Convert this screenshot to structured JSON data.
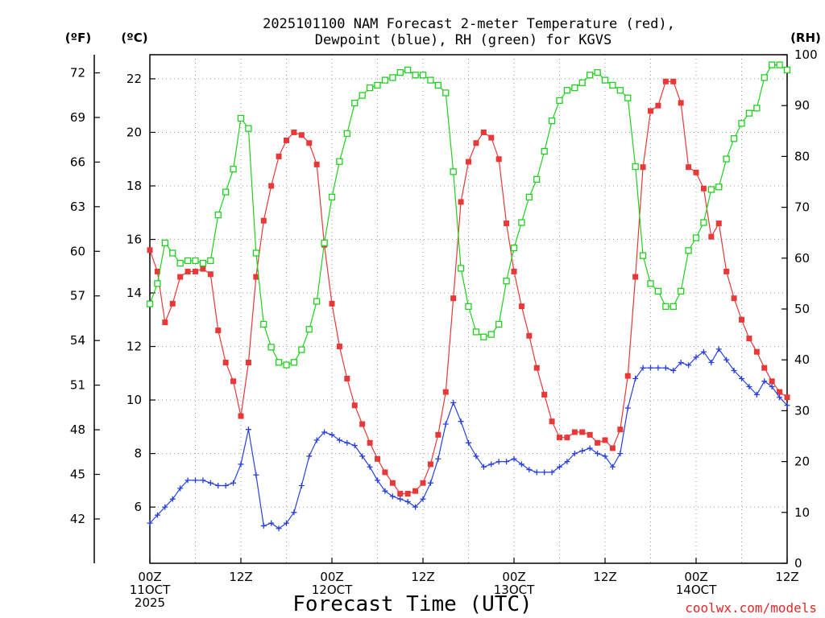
{
  "chart_data": {
    "type": "line",
    "title_line1": "2025101100 NAM Forecast 2-meter Temperature (red),",
    "title_line2": "Dewpoint (blue), RH (green) for KGVS",
    "xlabel": "Forecast Time (UTC)",
    "credit": "coolwx.com/models",
    "units": {
      "fahrenheit": "(ºF)",
      "celsius": "(ºC)",
      "rh": "(RH)"
    },
    "xlim": [
      0,
      84
    ],
    "x_unit": "forecast hour",
    "y_celsius_lim": [
      3.9,
      22.9
    ],
    "y_rh_lim": [
      0,
      100
    ],
    "x_ticks": [
      {
        "x": 0,
        "line1": "00Z",
        "line2": "11OCT",
        "line3": "2025"
      },
      {
        "x": 12,
        "line1": "12Z",
        "line2": "",
        "line3": ""
      },
      {
        "x": 24,
        "line1": "00Z",
        "line2": "12OCT",
        "line3": ""
      },
      {
        "x": 36,
        "line1": "12Z",
        "line2": "",
        "line3": ""
      },
      {
        "x": 48,
        "line1": "00Z",
        "line2": "13OCT",
        "line3": ""
      },
      {
        "x": 60,
        "line1": "12Z",
        "line2": "",
        "line3": ""
      },
      {
        "x": 72,
        "line1": "00Z",
        "line2": "14OCT",
        "line3": ""
      },
      {
        "x": 84,
        "line1": "12Z",
        "line2": "",
        "line3": ""
      }
    ],
    "celsius_ticks": [
      "6",
      "8",
      "10",
      "12",
      "14",
      "16",
      "18",
      "20",
      "22"
    ],
    "fahrenheit_ticks": [
      "42",
      "45",
      "48",
      "51",
      "54",
      "57",
      "60",
      "63",
      "66",
      "69",
      "72"
    ],
    "rh_ticks": [
      "0",
      "10",
      "20",
      "30",
      "40",
      "50",
      "60",
      "70",
      "80",
      "90",
      "100"
    ],
    "grid": true,
    "series": [
      {
        "name": "Temperature (red)",
        "axis": "celsius",
        "color": "#e83838",
        "marker": "filled-square",
        "values": [
          [
            0,
            15.6
          ],
          [
            1,
            14.8
          ],
          [
            2,
            12.9
          ],
          [
            3,
            13.6
          ],
          [
            4,
            14.6
          ],
          [
            5,
            14.8
          ],
          [
            6,
            14.8
          ],
          [
            7,
            14.9
          ],
          [
            8,
            14.7
          ],
          [
            9,
            12.6
          ],
          [
            10,
            11.4
          ],
          [
            11,
            10.7
          ],
          [
            12,
            9.4
          ],
          [
            13,
            11.4
          ],
          [
            14,
            14.6
          ],
          [
            15,
            16.7
          ],
          [
            16,
            18.0
          ],
          [
            17,
            19.1
          ],
          [
            18,
            19.7
          ],
          [
            19,
            20.0
          ],
          [
            20,
            19.9
          ],
          [
            21,
            19.6
          ],
          [
            22,
            18.8
          ],
          [
            23,
            15.8
          ],
          [
            24,
            13.6
          ],
          [
            25,
            12.0
          ],
          [
            26,
            10.8
          ],
          [
            27,
            9.8
          ],
          [
            28,
            9.1
          ],
          [
            29,
            8.4
          ],
          [
            30,
            7.8
          ],
          [
            31,
            7.3
          ],
          [
            32,
            6.9
          ],
          [
            33,
            6.5
          ],
          [
            34,
            6.5
          ],
          [
            35,
            6.6
          ],
          [
            36,
            6.9
          ],
          [
            37,
            7.6
          ],
          [
            38,
            8.7
          ],
          [
            39,
            10.3
          ],
          [
            40,
            13.8
          ],
          [
            41,
            17.4
          ],
          [
            42,
            18.9
          ],
          [
            43,
            19.6
          ],
          [
            44,
            20.0
          ],
          [
            45,
            19.8
          ],
          [
            46,
            19.0
          ],
          [
            47,
            16.6
          ],
          [
            48,
            14.8
          ],
          [
            49,
            13.5
          ],
          [
            50,
            12.4
          ],
          [
            51,
            11.2
          ],
          [
            52,
            10.2
          ],
          [
            53,
            9.2
          ],
          [
            54,
            8.6
          ],
          [
            55,
            8.6
          ],
          [
            56,
            8.8
          ],
          [
            57,
            8.8
          ],
          [
            58,
            8.7
          ],
          [
            59,
            8.4
          ],
          [
            60,
            8.5
          ],
          [
            61,
            8.2
          ],
          [
            62,
            8.9
          ],
          [
            63,
            10.9
          ],
          [
            64,
            14.6
          ],
          [
            65,
            18.7
          ],
          [
            66,
            20.8
          ],
          [
            67,
            21.0
          ],
          [
            68,
            21.9
          ],
          [
            69,
            21.9
          ],
          [
            70,
            21.1
          ],
          [
            71,
            18.7
          ],
          [
            72,
            18.5
          ],
          [
            73,
            17.9
          ],
          [
            74,
            16.1
          ],
          [
            75,
            16.6
          ],
          [
            76,
            14.8
          ],
          [
            77,
            13.8
          ],
          [
            78,
            13.0
          ],
          [
            79,
            12.3
          ],
          [
            80,
            11.8
          ],
          [
            81,
            11.2
          ],
          [
            82,
            10.7
          ],
          [
            83,
            10.3
          ],
          [
            84,
            10.1
          ]
        ]
      },
      {
        "name": "Dewpoint (blue)",
        "axis": "celsius",
        "color": "#2840e0",
        "marker": "plus",
        "values": [
          [
            0,
            5.4
          ],
          [
            1,
            5.7
          ],
          [
            2,
            6.0
          ],
          [
            3,
            6.3
          ],
          [
            4,
            6.7
          ],
          [
            5,
            7.0
          ],
          [
            6,
            7.0
          ],
          [
            7,
            7.0
          ],
          [
            8,
            6.9
          ],
          [
            9,
            6.8
          ],
          [
            10,
            6.8
          ],
          [
            11,
            6.9
          ],
          [
            12,
            7.6
          ],
          [
            13,
            8.9
          ],
          [
            14,
            7.2
          ],
          [
            15,
            5.3
          ],
          [
            16,
            5.4
          ],
          [
            17,
            5.2
          ],
          [
            18,
            5.4
          ],
          [
            19,
            5.8
          ],
          [
            20,
            6.8
          ],
          [
            21,
            7.9
          ],
          [
            22,
            8.5
          ],
          [
            23,
            8.8
          ],
          [
            24,
            8.7
          ],
          [
            25,
            8.5
          ],
          [
            26,
            8.4
          ],
          [
            27,
            8.3
          ],
          [
            28,
            7.9
          ],
          [
            29,
            7.5
          ],
          [
            30,
            7.0
          ],
          [
            31,
            6.6
          ],
          [
            32,
            6.4
          ],
          [
            33,
            6.3
          ],
          [
            34,
            6.2
          ],
          [
            35,
            6.0
          ],
          [
            36,
            6.3
          ],
          [
            37,
            6.9
          ],
          [
            38,
            7.8
          ],
          [
            39,
            9.1
          ],
          [
            40,
            9.9
          ],
          [
            41,
            9.2
          ],
          [
            42,
            8.4
          ],
          [
            43,
            7.9
          ],
          [
            44,
            7.5
          ],
          [
            45,
            7.6
          ],
          [
            46,
            7.7
          ],
          [
            47,
            7.7
          ],
          [
            48,
            7.8
          ],
          [
            49,
            7.6
          ],
          [
            50,
            7.4
          ],
          [
            51,
            7.3
          ],
          [
            52,
            7.3
          ],
          [
            53,
            7.3
          ],
          [
            54,
            7.5
          ],
          [
            55,
            7.7
          ],
          [
            56,
            8.0
          ],
          [
            57,
            8.1
          ],
          [
            58,
            8.2
          ],
          [
            59,
            8.0
          ],
          [
            60,
            7.9
          ],
          [
            61,
            7.5
          ],
          [
            62,
            8.0
          ],
          [
            63,
            9.7
          ],
          [
            64,
            10.8
          ],
          [
            65,
            11.2
          ],
          [
            66,
            11.2
          ],
          [
            67,
            11.2
          ],
          [
            68,
            11.2
          ],
          [
            69,
            11.1
          ],
          [
            70,
            11.4
          ],
          [
            71,
            11.3
          ],
          [
            72,
            11.6
          ],
          [
            73,
            11.8
          ],
          [
            74,
            11.4
          ],
          [
            75,
            11.9
          ],
          [
            76,
            11.5
          ],
          [
            77,
            11.1
          ],
          [
            78,
            10.8
          ],
          [
            79,
            10.5
          ],
          [
            80,
            10.2
          ],
          [
            81,
            10.7
          ],
          [
            82,
            10.5
          ],
          [
            83,
            10.1
          ],
          [
            84,
            9.8
          ]
        ]
      },
      {
        "name": "RH (green)",
        "axis": "rh",
        "color": "#20d020",
        "marker": "open-square",
        "values": [
          [
            0,
            51
          ],
          [
            1,
            55
          ],
          [
            2,
            63
          ],
          [
            3,
            61
          ],
          [
            4,
            59
          ],
          [
            5,
            59.5
          ],
          [
            6,
            59.5
          ],
          [
            7,
            59
          ],
          [
            8,
            59.5
          ],
          [
            9,
            68.5
          ],
          [
            10,
            73
          ],
          [
            11,
            77.5
          ],
          [
            12,
            87.5
          ],
          [
            13,
            85.5
          ],
          [
            14,
            61
          ],
          [
            15,
            47
          ],
          [
            16,
            42.5
          ],
          [
            17,
            39.5
          ],
          [
            18,
            39
          ],
          [
            19,
            39.5
          ],
          [
            20,
            42
          ],
          [
            21,
            46
          ],
          [
            22,
            51.5
          ],
          [
            23,
            63
          ],
          [
            24,
            72
          ],
          [
            25,
            79
          ],
          [
            26,
            84.5
          ],
          [
            27,
            90.5
          ],
          [
            28,
            92
          ],
          [
            29,
            93.5
          ],
          [
            30,
            94
          ],
          [
            31,
            95
          ],
          [
            32,
            95.5
          ],
          [
            33,
            96.5
          ],
          [
            34,
            97
          ],
          [
            35,
            96
          ],
          [
            36,
            96
          ],
          [
            37,
            95
          ],
          [
            38,
            94
          ],
          [
            39,
            92.5
          ],
          [
            40,
            77
          ],
          [
            41,
            58
          ],
          [
            42,
            50.5
          ],
          [
            43,
            45.5
          ],
          [
            44,
            44.5
          ],
          [
            45,
            45
          ],
          [
            46,
            47
          ],
          [
            47,
            55.5
          ],
          [
            48,
            62
          ],
          [
            49,
            67
          ],
          [
            50,
            72
          ],
          [
            51,
            75.5
          ],
          [
            52,
            81
          ],
          [
            53,
            87
          ],
          [
            54,
            91
          ],
          [
            55,
            93
          ],
          [
            56,
            93.5
          ],
          [
            57,
            94.5
          ],
          [
            58,
            96
          ],
          [
            59,
            96.5
          ],
          [
            60,
            95
          ],
          [
            61,
            94
          ],
          [
            62,
            93
          ],
          [
            63,
            91.5
          ],
          [
            64,
            78
          ],
          [
            65,
            60.5
          ],
          [
            66,
            55
          ],
          [
            67,
            53.5
          ],
          [
            68,
            50.5
          ],
          [
            69,
            50.5
          ],
          [
            70,
            53.5
          ],
          [
            71,
            61.5
          ],
          [
            72,
            64
          ],
          [
            73,
            67
          ],
          [
            74,
            73.5
          ],
          [
            75,
            74
          ],
          [
            76,
            79.5
          ],
          [
            77,
            83.5
          ],
          [
            78,
            86.5
          ],
          [
            79,
            88.5
          ],
          [
            80,
            89.5
          ],
          [
            81,
            95.5
          ],
          [
            82,
            98
          ],
          [
            83,
            98
          ],
          [
            84,
            97
          ]
        ]
      }
    ]
  }
}
